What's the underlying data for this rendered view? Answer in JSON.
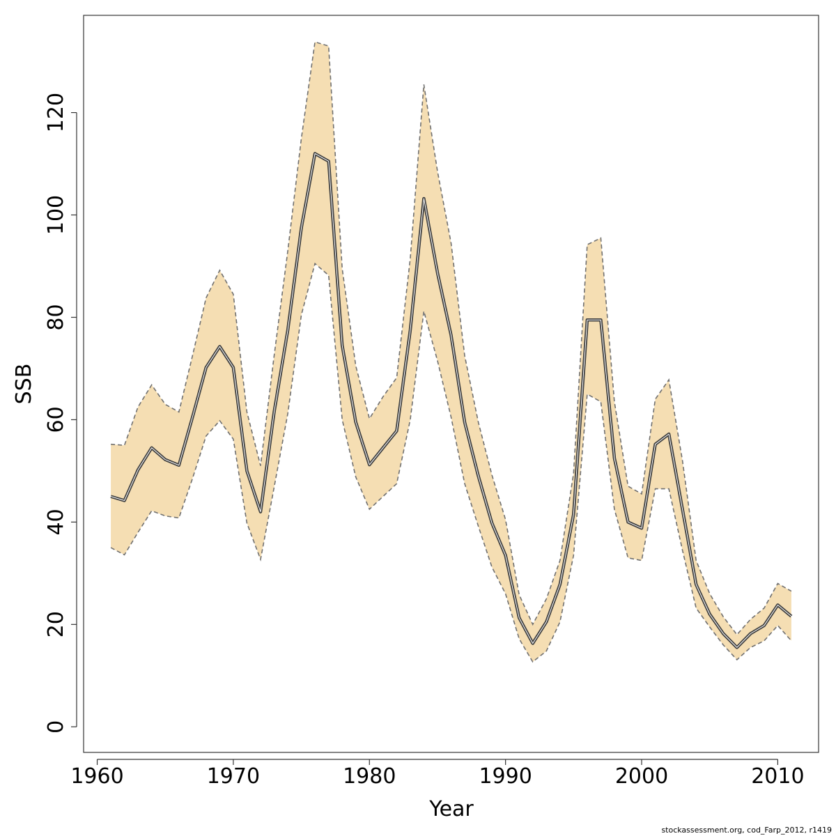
{
  "chart_data": {
    "type": "area",
    "title": "",
    "xlabel": "Year",
    "ylabel": "SSB",
    "xlim": [
      1959,
      2013
    ],
    "ylim": [
      -5,
      139
    ],
    "xticks": [
      "1960",
      "1970",
      "1980",
      "1990",
      "2000",
      "2010"
    ],
    "yticks": [
      "0",
      "20",
      "40",
      "60",
      "80",
      "100",
      "120"
    ],
    "grid": false,
    "colors": {
      "band": "#f5deb3",
      "line": "#404040",
      "bound": "#707070",
      "axis": "#333333"
    },
    "x": [
      1961,
      1962,
      1963,
      1964,
      1965,
      1966,
      1967,
      1968,
      1969,
      1970,
      1971,
      1972,
      1973,
      1974,
      1975,
      1976,
      1977,
      1978,
      1979,
      1980,
      1981,
      1982,
      1983,
      1984,
      1985,
      1986,
      1987,
      1988,
      1989,
      1990,
      1991,
      1992,
      1993,
      1994,
      1995,
      1996,
      1997,
      1998,
      1999,
      2000,
      2001,
      2002,
      2003,
      2004,
      2005,
      2006,
      2007,
      2008,
      2009,
      2010,
      2011
    ],
    "series": [
      {
        "name": "SSB",
        "values": [
          45,
          44.2,
          50.2,
          54.5,
          52.2,
          51.1,
          60.5,
          70.2,
          74.3,
          70.2,
          50,
          42,
          61.5,
          77.5,
          97.5,
          112,
          110.5,
          74.5,
          59.5,
          51.2,
          54.5,
          57.8,
          77.5,
          103.2,
          88.7,
          76.5,
          59.5,
          49,
          39.8,
          33.5,
          21.3,
          16.3,
          20.5,
          27.8,
          41.5,
          79.5,
          79.5,
          52.5,
          40,
          38.8,
          55.2,
          57.2,
          42.5,
          27.8,
          22,
          18.2,
          15.5,
          18.2,
          19.8,
          23.8,
          21.6
        ]
      },
      {
        "name": "upper",
        "values": [
          55.2,
          55,
          62.5,
          66.8,
          63,
          61.5,
          72.5,
          83.8,
          89.2,
          84.5,
          61.5,
          51,
          72.5,
          93,
          115,
          133.8,
          133,
          89.5,
          70.5,
          60.2,
          64.5,
          68.2,
          91.5,
          125.5,
          108.5,
          94.5,
          72.5,
          59.5,
          49.2,
          40.5,
          25.8,
          20,
          25,
          32.5,
          49.5,
          94.2,
          95.5,
          63.5,
          47,
          45.5,
          64,
          67.8,
          52,
          32.5,
          26,
          21.5,
          18,
          21,
          23.2,
          28,
          26.5
        ]
      },
      {
        "name": "lower",
        "values": [
          35,
          33.6,
          38,
          42.2,
          41.2,
          40.8,
          48.5,
          56.8,
          59.8,
          56.2,
          39.8,
          32.7,
          46.8,
          61.2,
          80.5,
          90.5,
          88.2,
          60,
          48.8,
          42.5,
          45,
          47.5,
          60,
          81.2,
          71.5,
          60.5,
          47.5,
          39.2,
          31.2,
          26,
          17.2,
          12.7,
          14.8,
          20.5,
          33.5,
          65,
          63.5,
          42.5,
          33,
          32.5,
          46.5,
          46.5,
          34.5,
          23.2,
          19.5,
          16,
          13.1,
          15.5,
          16.8,
          19.8,
          16.8
        ]
      }
    ]
  },
  "footnote": "stockassessment.org, cod_Farp_2012, r1419"
}
